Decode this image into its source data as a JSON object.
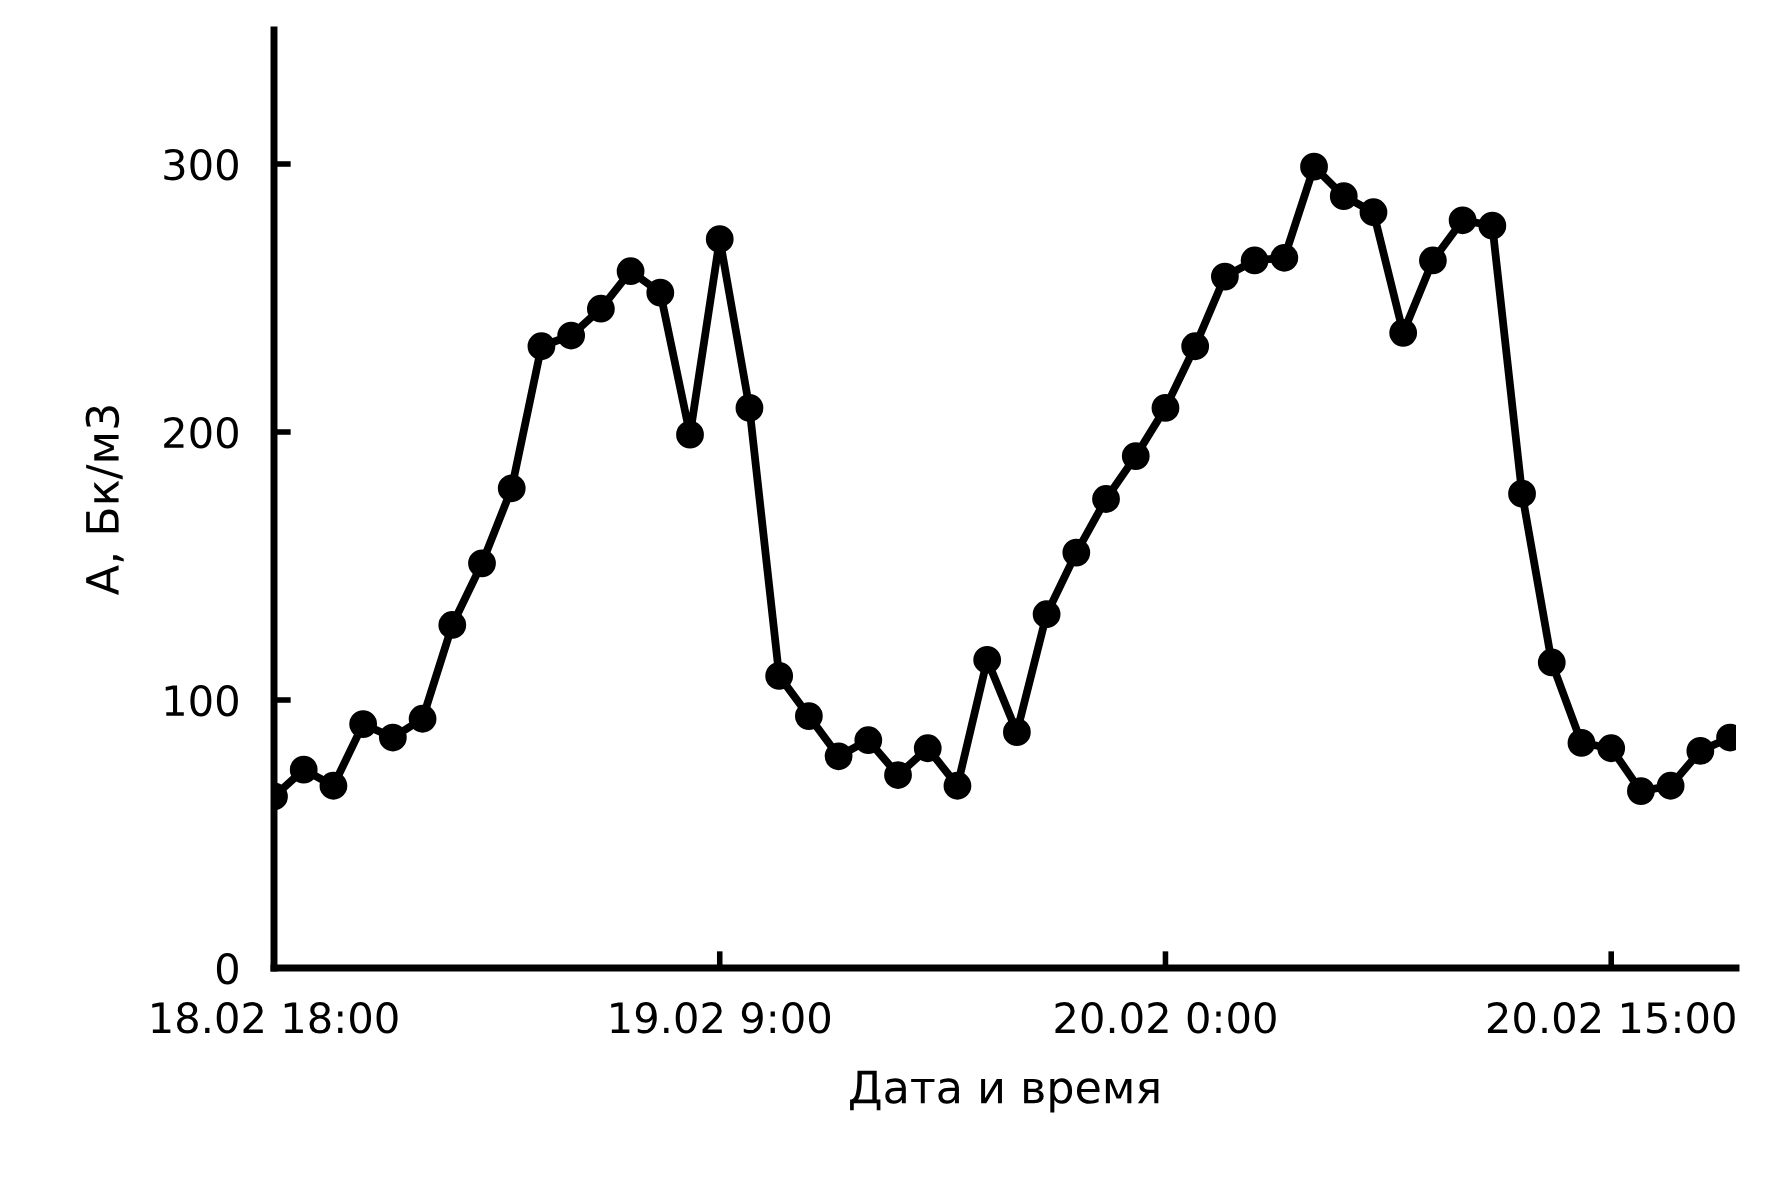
{
  "chart_data": {
    "type": "line",
    "xlabel": "Дата и время",
    "ylabel": "А, Бк/м3",
    "categories": [
      "18.02 18:00",
      null,
      null,
      null,
      null,
      null,
      null,
      null,
      null,
      null,
      null,
      null,
      null,
      null,
      null,
      "19.02 9:00",
      null,
      null,
      null,
      null,
      null,
      null,
      null,
      null,
      null,
      null,
      null,
      null,
      null,
      null,
      "20.02 0:00",
      null,
      null,
      null,
      null,
      null,
      null,
      null,
      null,
      null,
      null,
      null,
      null,
      null,
      null,
      "20.02 15:00",
      null,
      null,
      null,
      null
    ],
    "series": [
      {
        "color": "#000000",
        "values": [
          64,
          74,
          68,
          91,
          86,
          93,
          128,
          151,
          179,
          232,
          236,
          246,
          260,
          252,
          199,
          272,
          209,
          109,
          94,
          79,
          85,
          72,
          82,
          68,
          115,
          88,
          132,
          155,
          175,
          191,
          209,
          232,
          258,
          264,
          265,
          299,
          288,
          282,
          237,
          264,
          279,
          277,
          177,
          114,
          84,
          82,
          66,
          68,
          81,
          86
        ]
      }
    ],
    "ylim": [
      0,
      350
    ],
    "yticks": [
      0,
      100,
      200,
      300
    ],
    "grid": false,
    "legend": false,
    "marker": "circle",
    "line_style": "solid"
  }
}
